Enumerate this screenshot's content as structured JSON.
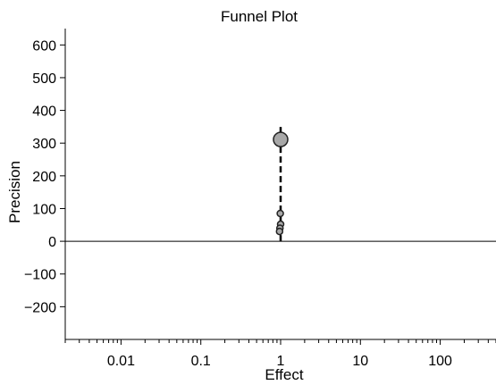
{
  "chart_data": {
    "type": "scatter",
    "title": "Funnel Plot",
    "xlabel": "Effect",
    "ylabel": "Precision",
    "x_scale": "log",
    "xlim": [
      0.002,
      500
    ],
    "ylim": [
      -300,
      650
    ],
    "x_ticks": [
      {
        "value": 0.01,
        "label": "0.01"
      },
      {
        "value": 0.1,
        "label": "0.1"
      },
      {
        "value": 1,
        "label": "1"
      },
      {
        "value": 10,
        "label": "10"
      },
      {
        "value": 100,
        "label": "100"
      }
    ],
    "y_ticks": [
      {
        "value": 600,
        "label": "600"
      },
      {
        "value": 500,
        "label": "500"
      },
      {
        "value": 400,
        "label": "400"
      },
      {
        "value": 300,
        "label": "300"
      },
      {
        "value": 200,
        "label": "200"
      },
      {
        "value": 100,
        "label": "100"
      },
      {
        "value": 0,
        "label": "0"
      },
      {
        "value": -100,
        "label": "−100"
      },
      {
        "value": -200,
        "label": "−200"
      }
    ],
    "reference_line": {
      "x": 1,
      "y_from": 0,
      "y_to": 350,
      "style": "dashed"
    },
    "zero_line": {
      "y": 0
    },
    "points": [
      {
        "x": 1.0,
        "y": 311,
        "weight": "large"
      },
      {
        "x": 0.99,
        "y": 85,
        "weight": "small"
      },
      {
        "x": 1.0,
        "y": 52,
        "weight": "small"
      },
      {
        "x": 0.98,
        "y": 40,
        "weight": "small"
      },
      {
        "x": 0.97,
        "y": 30,
        "weight": "small"
      }
    ],
    "colors": {
      "point_fill": "#a8a8a8",
      "point_stroke": "#222222",
      "line": "#000000"
    }
  }
}
